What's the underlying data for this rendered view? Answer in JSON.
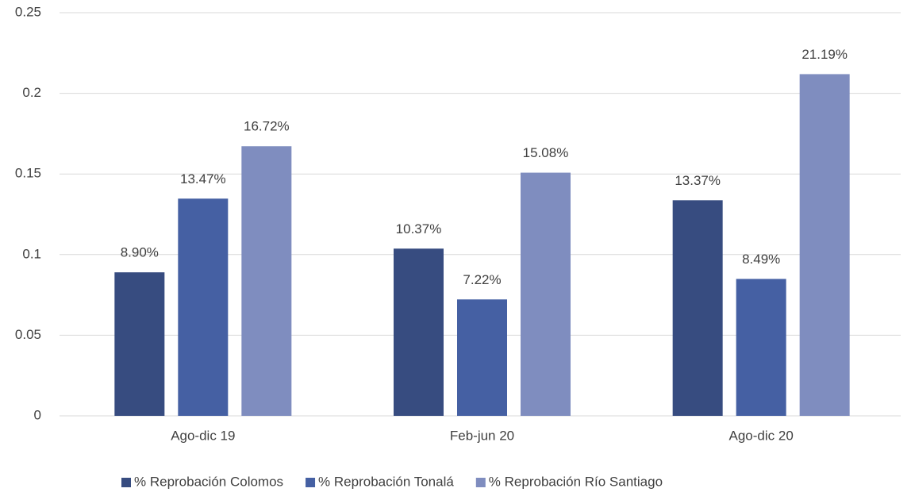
{
  "chart_data": {
    "type": "bar",
    "categories": [
      "Ago-dic 19",
      "Feb-jun 20",
      "Ago-dic 20"
    ],
    "series": [
      {
        "name": "% Reprobación Colomos",
        "color": "#374c80",
        "values": [
          0.089,
          0.1037,
          0.1337
        ],
        "value_labels": [
          "8.90%",
          "10.37%",
          "13.37%"
        ]
      },
      {
        "name": "% Reprobación Tonalá",
        "color": "#4560a3",
        "values": [
          0.1347,
          0.0722,
          0.0849
        ],
        "value_labels": [
          "13.47%",
          "7.22%",
          "8.49%"
        ]
      },
      {
        "name": "% Reprobación Río Santiago",
        "color": "#7f8dbf",
        "values": [
          0.1672,
          0.1508,
          0.2119
        ],
        "value_labels": [
          "16.72%",
          "15.08%",
          "21.19%"
        ]
      }
    ],
    "ylim": [
      0,
      0.25
    ],
    "yticks": [
      0,
      0.05,
      0.1,
      0.15,
      0.2,
      0.25
    ],
    "grid": true,
    "legend": "bottom"
  }
}
